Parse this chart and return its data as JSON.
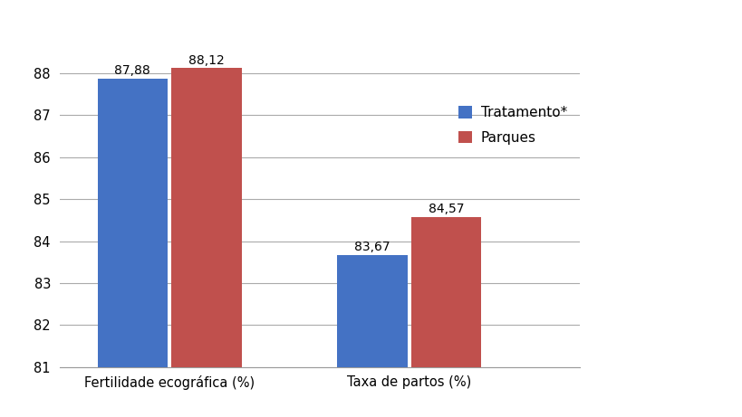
{
  "categories": [
    "Fertilidade ecográfica (%)",
    "Taxa de partos (%)"
  ],
  "tratamento_values": [
    87.88,
    83.67
  ],
  "parques_values": [
    88.12,
    84.57
  ],
  "tratamento_label": "Tratamento*",
  "parques_label": "Parques",
  "tratamento_color": "#4472C4",
  "parques_color": "#C0504D",
  "ylim_min": 81,
  "ylim_max": 89,
  "yticks": [
    81,
    82,
    83,
    84,
    85,
    86,
    87,
    88
  ],
  "bar_width": 0.35,
  "label_fontsize": 10.5,
  "tick_fontsize": 10.5,
  "legend_fontsize": 11,
  "value_fontsize": 10,
  "background_color": "#ffffff",
  "grid_color": "#aaaaaa"
}
